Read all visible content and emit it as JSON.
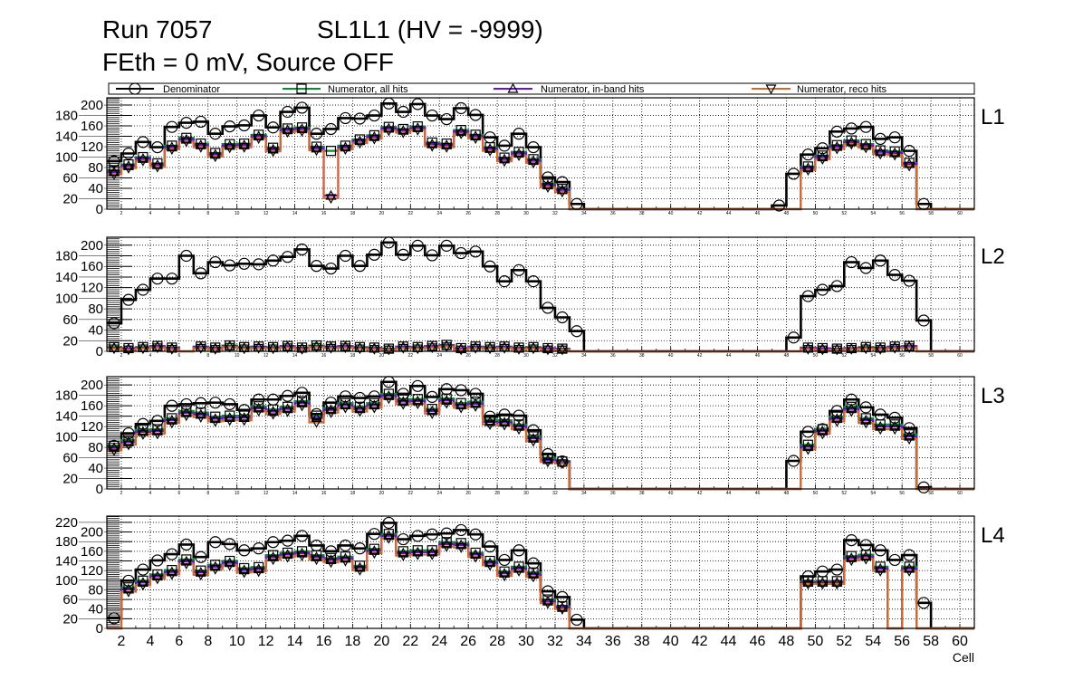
{
  "title": {
    "run": "Run 7057",
    "chamber": "SL1L1 (HV = -9999)",
    "subtitle": "FEth = 0 mV, Source OFF"
  },
  "legend": [
    {
      "key": "den",
      "label": "Denominator",
      "marker": "open-circle",
      "color": "#000000"
    },
    {
      "key": "all",
      "label": "Numerator, all hits",
      "marker": "open-square",
      "color": "#00912c"
    },
    {
      "key": "inband",
      "label": "Numerator, in-band hits",
      "marker": "open-triangle-up",
      "color": "#6a10d8"
    },
    {
      "key": "reco",
      "label": "Numerator, reco hits",
      "marker": "open-triangle-down",
      "color": "#d26a2e"
    }
  ],
  "chart_data": [
    {
      "type": "bar",
      "label": "L1",
      "xlabel": "Cell",
      "xlim": [
        1,
        61
      ],
      "ylim": [
        0,
        214
      ],
      "yticks": [
        0,
        20,
        40,
        60,
        80,
        100,
        120,
        140,
        160,
        180,
        200
      ],
      "xticks": [
        2,
        4,
        6,
        8,
        10,
        12,
        14,
        16,
        18,
        20,
        22,
        24,
        26,
        28,
        30,
        32,
        34,
        36,
        38,
        40,
        42,
        44,
        46,
        48,
        50,
        52,
        54,
        56,
        58,
        60
      ],
      "series": {
        "den": [
          92,
          107,
          129,
          119,
          158,
          166,
          168,
          145,
          159,
          161,
          180,
          157,
          187,
          195,
          145,
          154,
          175,
          174,
          180,
          203,
          187,
          202,
          180,
          173,
          194,
          181,
          138,
          122,
          145,
          119,
          61,
          52,
          10,
          0,
          0,
          0,
          0,
          0,
          0,
          0,
          0,
          0,
          0,
          0,
          0,
          0,
          7,
          68,
          105,
          117,
          149,
          155,
          158,
          135,
          138,
          112,
          10,
          0,
          0,
          0
        ],
        "all": [
          74,
          86,
          100,
          88,
          122,
          137,
          126,
          108,
          125,
          126,
          143,
          118,
          155,
          157,
          120,
          112,
          122,
          134,
          142,
          158,
          154,
          159,
          128,
          126,
          152,
          143,
          119,
          99,
          110,
          96,
          49,
          39,
          0,
          0,
          0,
          0,
          0,
          0,
          0,
          0,
          0,
          0,
          0,
          0,
          0,
          0,
          0,
          0,
          82,
          103,
          123,
          132,
          125,
          113,
          111,
          89,
          0,
          0,
          0,
          0
        ],
        "inband": [
          71,
          83,
          97,
          85,
          119,
          134,
          123,
          105,
          122,
          123,
          140,
          115,
          152,
          154,
          117,
          26,
          119,
          131,
          139,
          155,
          151,
          156,
          125,
          123,
          149,
          140,
          116,
          96,
          107,
          93,
          46,
          37,
          0,
          0,
          0,
          0,
          0,
          0,
          0,
          0,
          0,
          0,
          0,
          0,
          0,
          0,
          0,
          0,
          79,
          100,
          120,
          129,
          122,
          110,
          108,
          87,
          0,
          0,
          0,
          0
        ],
        "reco": [
          67,
          79,
          93,
          81,
          115,
          130,
          119,
          101,
          118,
          119,
          136,
          111,
          148,
          150,
          113,
          21,
          115,
          127,
          135,
          151,
          147,
          152,
          121,
          119,
          145,
          136,
          112,
          92,
          103,
          89,
          42,
          33,
          0,
          0,
          0,
          0,
          0,
          0,
          0,
          0,
          0,
          0,
          0,
          0,
          0,
          0,
          0,
          0,
          75,
          96,
          116,
          125,
          118,
          106,
          104,
          83,
          0,
          0,
          0,
          0
        ]
      }
    },
    {
      "type": "bar",
      "label": "L2",
      "xlabel": "Cell",
      "xlim": [
        1,
        61
      ],
      "ylim": [
        0,
        215
      ],
      "yticks": [
        0,
        20,
        40,
        60,
        80,
        100,
        120,
        140,
        160,
        180,
        200
      ],
      "xticks": [
        2,
        4,
        6,
        8,
        10,
        12,
        14,
        16,
        18,
        20,
        22,
        24,
        26,
        28,
        30,
        32,
        34,
        36,
        38,
        40,
        42,
        44,
        46,
        48,
        50,
        52,
        54,
        56,
        58,
        60
      ],
      "series": {
        "den": [
          53,
          97,
          116,
          137,
          137,
          180,
          147,
          168,
          162,
          165,
          164,
          171,
          178,
          192,
          161,
          156,
          180,
          161,
          182,
          205,
          182,
          199,
          181,
          199,
          185,
          188,
          160,
          132,
          153,
          132,
          82,
          64,
          38,
          0,
          0,
          0,
          0,
          0,
          0,
          0,
          0,
          0,
          0,
          0,
          0,
          0,
          0,
          26,
          104,
          116,
          123,
          168,
          157,
          171,
          144,
          133,
          58,
          0,
          0,
          0
        ],
        "all": [
          8,
          6,
          8,
          10,
          7,
          0,
          9,
          7,
          11,
          8,
          9,
          8,
          10,
          7,
          11,
          9,
          10,
          8,
          7,
          5,
          9,
          8,
          10,
          12,
          6,
          9,
          8,
          9,
          7,
          8,
          6,
          5,
          0,
          0,
          0,
          0,
          0,
          0,
          0,
          0,
          0,
          0,
          0,
          0,
          0,
          0,
          0,
          0,
          7,
          6,
          5,
          6,
          8,
          7,
          9,
          10,
          0,
          0,
          0,
          0
        ],
        "inband": [
          7,
          5,
          7,
          9,
          6,
          0,
          8,
          6,
          10,
          7,
          8,
          7,
          9,
          6,
          10,
          8,
          9,
          7,
          6,
          4,
          8,
          7,
          9,
          11,
          5,
          8,
          7,
          8,
          6,
          7,
          5,
          4,
          0,
          0,
          0,
          0,
          0,
          0,
          0,
          0,
          0,
          0,
          0,
          0,
          0,
          0,
          0,
          0,
          6,
          5,
          4,
          5,
          7,
          6,
          8,
          9,
          0,
          0,
          0,
          0
        ],
        "reco": [
          5,
          3,
          5,
          7,
          4,
          0,
          6,
          4,
          8,
          5,
          6,
          5,
          7,
          4,
          8,
          6,
          7,
          5,
          4,
          3,
          6,
          5,
          7,
          9,
          3,
          6,
          5,
          6,
          4,
          5,
          3,
          3,
          0,
          0,
          0,
          0,
          0,
          0,
          0,
          0,
          0,
          0,
          0,
          0,
          0,
          0,
          0,
          0,
          4,
          3,
          3,
          4,
          5,
          4,
          6,
          7,
          0,
          0,
          0,
          0
        ]
      }
    },
    {
      "type": "bar",
      "label": "L3",
      "xlabel": "Cell",
      "xlim": [
        1,
        61
      ],
      "ylim": [
        0,
        216
      ],
      "yticks": [
        0,
        20,
        40,
        60,
        80,
        100,
        120,
        140,
        160,
        180,
        200
      ],
      "xticks": [
        2,
        4,
        6,
        8,
        10,
        12,
        14,
        16,
        18,
        20,
        22,
        24,
        26,
        28,
        30,
        32,
        34,
        36,
        38,
        40,
        42,
        44,
        46,
        48,
        50,
        52,
        54,
        56,
        58,
        60
      ],
      "series": {
        "den": [
          83,
          107,
          125,
          131,
          160,
          163,
          165,
          166,
          163,
          152,
          172,
          172,
          179,
          185,
          144,
          166,
          178,
          175,
          178,
          206,
          183,
          198,
          177,
          192,
          190,
          183,
          139,
          143,
          141,
          113,
          67,
          53,
          0,
          0,
          0,
          0,
          0,
          0,
          0,
          0,
          0,
          0,
          0,
          0,
          0,
          0,
          0,
          54,
          110,
          115,
          150,
          172,
          157,
          143,
          137,
          117,
          3,
          0,
          0,
          0
        ],
        "all": [
          83,
          94,
          114,
          115,
          136,
          150,
          147,
          139,
          141,
          141,
          159,
          153,
          158,
          169,
          141,
          156,
          165,
          158,
          165,
          183,
          172,
          173,
          154,
          174,
          165,
          168,
          133,
          132,
          124,
          101,
          60,
          53,
          0,
          0,
          0,
          0,
          0,
          0,
          0,
          0,
          0,
          0,
          0,
          0,
          0,
          0,
          0,
          0,
          85,
          115,
          139,
          158,
          136,
          124,
          124,
          105,
          0,
          0,
          0,
          0
        ],
        "inband": [
          79,
          90,
          110,
          111,
          132,
          146,
          143,
          135,
          137,
          137,
          155,
          149,
          154,
          165,
          137,
          152,
          161,
          154,
          161,
          179,
          168,
          169,
          150,
          170,
          161,
          164,
          129,
          128,
          120,
          97,
          56,
          51,
          0,
          0,
          0,
          0,
          0,
          0,
          0,
          0,
          0,
          0,
          0,
          0,
          0,
          0,
          0,
          0,
          81,
          111,
          135,
          154,
          132,
          120,
          120,
          101,
          0,
          0,
          0,
          0
        ],
        "reco": [
          74,
          85,
          105,
          106,
          127,
          141,
          138,
          130,
          132,
          132,
          150,
          144,
          149,
          160,
          128,
          147,
          156,
          149,
          156,
          174,
          163,
          164,
          145,
          165,
          156,
          159,
          124,
          123,
          115,
          92,
          52,
          49,
          0,
          0,
          0,
          0,
          0,
          0,
          0,
          0,
          0,
          0,
          0,
          0,
          0,
          0,
          0,
          0,
          76,
          106,
          130,
          149,
          127,
          115,
          115,
          96,
          0,
          0,
          0,
          0
        ]
      }
    },
    {
      "type": "bar",
      "label": "L4",
      "xlabel": "Cell",
      "xlim": [
        1,
        61
      ],
      "ylim": [
        0,
        233
      ],
      "yticks": [
        0,
        20,
        40,
        60,
        80,
        100,
        120,
        140,
        160,
        180,
        200,
        220
      ],
      "xticks": [
        2,
        4,
        6,
        8,
        10,
        12,
        14,
        16,
        18,
        20,
        22,
        24,
        26,
        28,
        30,
        32,
        34,
        36,
        38,
        40,
        42,
        44,
        46,
        48,
        50,
        52,
        54,
        56,
        58,
        60
      ],
      "series": {
        "den": [
          21,
          99,
          122,
          141,
          154,
          174,
          148,
          179,
          175,
          162,
          166,
          179,
          182,
          192,
          172,
          160,
          172,
          166,
          196,
          219,
          185,
          192,
          195,
          197,
          204,
          195,
          170,
          142,
          162,
          135,
          77,
          65,
          18,
          0,
          0,
          0,
          0,
          0,
          0,
          0,
          0,
          0,
          0,
          0,
          0,
          0,
          0,
          0,
          108,
          118,
          122,
          183,
          173,
          162,
          142,
          152,
          53,
          0,
          0,
          0
        ],
        "all": [
          0,
          85,
          99,
          112,
          121,
          143,
          120,
          132,
          140,
          125,
          127,
          152,
          157,
          160,
          152,
          146,
          149,
          130,
          165,
          196,
          160,
          162,
          162,
          179,
          177,
          157,
          140,
          118,
          128,
          116,
          60,
          46,
          0,
          0,
          0,
          0,
          0,
          0,
          0,
          0,
          0,
          0,
          0,
          0,
          0,
          0,
          0,
          0,
          98,
          98,
          98,
          150,
          153,
          128,
          0,
          128,
          0,
          0,
          0,
          0
        ],
        "inband": [
          0,
          81,
          95,
          108,
          117,
          139,
          116,
          128,
          136,
          121,
          123,
          148,
          153,
          156,
          148,
          142,
          145,
          126,
          161,
          192,
          156,
          158,
          158,
          175,
          173,
          153,
          136,
          114,
          124,
          112,
          56,
          43,
          0,
          0,
          0,
          0,
          0,
          0,
          0,
          0,
          0,
          0,
          0,
          0,
          0,
          0,
          0,
          0,
          95,
          95,
          95,
          146,
          149,
          124,
          0,
          124,
          0,
          0,
          0,
          0
        ],
        "reco": [
          0,
          76,
          90,
          103,
          112,
          134,
          111,
          123,
          131,
          116,
          118,
          143,
          148,
          151,
          143,
          137,
          140,
          121,
          156,
          187,
          151,
          153,
          153,
          170,
          168,
          148,
          131,
          109,
          119,
          107,
          52,
          40,
          0,
          0,
          0,
          0,
          0,
          0,
          0,
          0,
          0,
          0,
          0,
          0,
          0,
          0,
          0,
          0,
          92,
          92,
          92,
          141,
          144,
          119,
          0,
          119,
          0,
          0,
          0,
          0
        ]
      }
    }
  ]
}
